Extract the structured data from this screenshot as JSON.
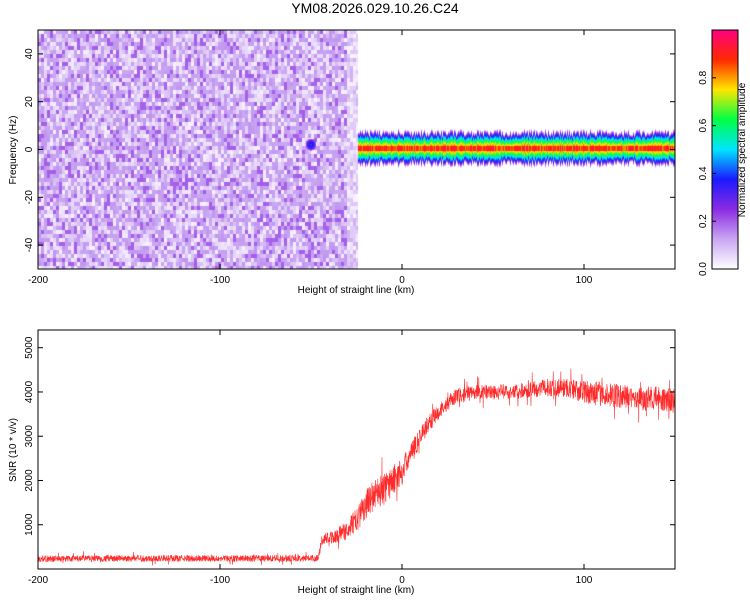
{
  "figure": {
    "title": "YM08.2026.029.10.26.C24"
  },
  "chart_data": [
    {
      "type": "heatmap",
      "title": "YM08.2026.029.10.26.C24",
      "xlabel": "Height of straight line (km)",
      "ylabel": "Frequency (Hz)",
      "xlim": [
        -200,
        150
      ],
      "ylim": [
        -50,
        50
      ],
      "xticks": [
        -200,
        -100,
        0,
        100
      ],
      "yticks": [
        -40,
        -20,
        0,
        20,
        40
      ],
      "colorbar": {
        "label": "Normalized spectral amplitude",
        "range": [
          0,
          1
        ],
        "ticks": [
          "0.0",
          "0.2",
          "0.4",
          "0.6",
          "0.8"
        ],
        "colormap": [
          "#ffffff",
          "#c9a6f2",
          "#8a2be2",
          "#1a1aff",
          "#00e5ff",
          "#00ff44",
          "#ffe600",
          "#ff2a00",
          "#ff0080"
        ]
      },
      "regions": [
        {
          "name": "broadband noise",
          "x_range": [
            -200,
            -24
          ],
          "freq_range": [
            -50,
            50
          ],
          "amplitude_range": [
            0.0,
            0.2
          ]
        },
        {
          "name": "narrow band at 0 Hz",
          "x_range": [
            -24,
            150
          ],
          "freq_range": [
            -3,
            3
          ],
          "amplitude_peak": 0.95
        },
        {
          "name": "isolated blob",
          "x": -50,
          "freq": 2,
          "amplitude": 0.4
        }
      ]
    },
    {
      "type": "line",
      "xlabel": "Height of straight line (km)",
      "ylabel": "SNR (10 * v/v)",
      "xlim": [
        -200,
        150
      ],
      "ylim": [
        0,
        5400
      ],
      "xticks": [
        -200,
        -100,
        0,
        100
      ],
      "yticks": [
        1000,
        2000,
        3000,
        4000,
        5000
      ],
      "color": "#ff2a2a",
      "series": [
        {
          "name": "SNR",
          "x": [
            -200,
            -150,
            -100,
            -60,
            -46,
            -44,
            -40,
            -35,
            -30,
            -25,
            -20,
            -15,
            -10,
            -5,
            0,
            5,
            10,
            15,
            20,
            25,
            30,
            40,
            50,
            60,
            70,
            80,
            90,
            100,
            110,
            120,
            130,
            140,
            150
          ],
          "values": [
            230,
            240,
            240,
            240,
            250,
            650,
            700,
            760,
            900,
            1100,
            1450,
            1700,
            1800,
            2000,
            2200,
            2600,
            3000,
            3300,
            3550,
            3750,
            3900,
            4000,
            4000,
            4000,
            4050,
            4100,
            4100,
            4000,
            3950,
            3900,
            3850,
            3850,
            3800
          ],
          "noise": [
            150,
            150,
            150,
            150,
            150,
            250,
            300,
            350,
            450,
            550,
            650,
            700,
            750,
            700,
            600,
            500,
            450,
            400,
            350,
            350,
            350,
            350,
            350,
            350,
            350,
            400,
            450,
            500,
            550,
            550,
            550,
            550,
            550
          ]
        }
      ]
    }
  ]
}
